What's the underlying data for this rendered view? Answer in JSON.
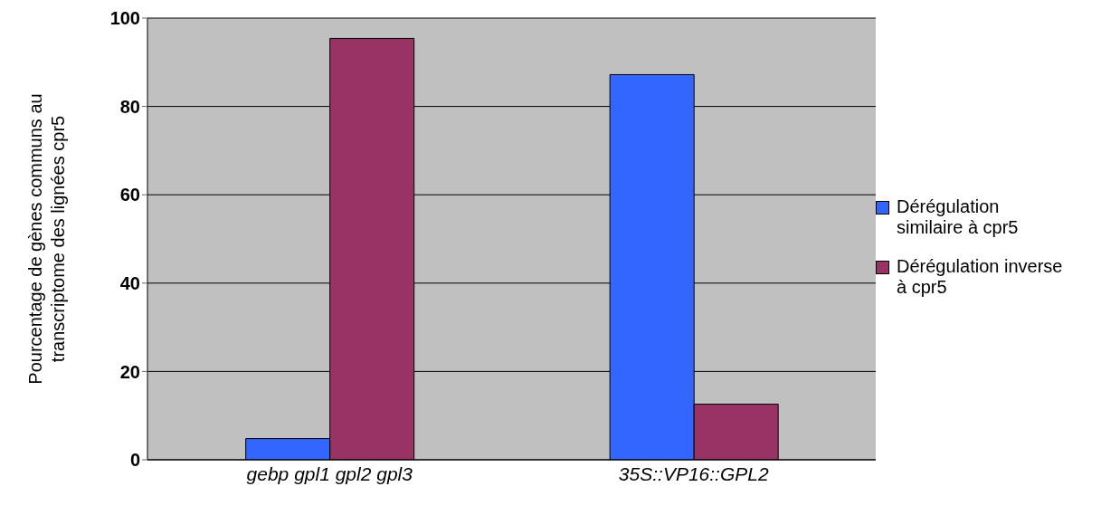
{
  "chart_data": {
    "type": "bar",
    "ylabel": "Pourcentage de gènes communs au transcriptome des lignées cpr5",
    "categories": [
      "gebp gpl1 gpl2 gpl3",
      "35S::VP16::GPL2"
    ],
    "series": [
      {
        "name": "Dérégulation similaire à cpr5",
        "color": "#3366ff",
        "values": [
          4.8,
          87.2
        ]
      },
      {
        "name": "Dérégulation inverse à cpr5",
        "color": "#993366",
        "values": [
          95.4,
          12.6
        ]
      }
    ],
    "ylim": [
      0,
      100
    ],
    "yticks": [
      0,
      20,
      40,
      60,
      80,
      100
    ],
    "grid": "y",
    "legend": "right"
  }
}
